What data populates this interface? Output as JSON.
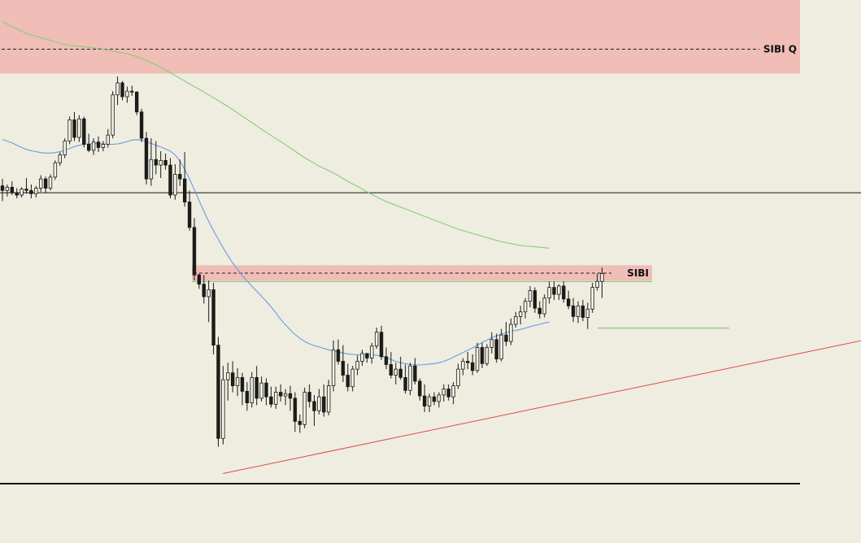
{
  "chart_data": {
    "type": "candlestick",
    "colors": {
      "background": "#eeeddf",
      "bull_fill": "#f2f2e6",
      "bear_fill": "#1c1c1c",
      "candle_outline": "#1a1a1a",
      "zone_fill": "#f0bdb7",
      "ma_fast": "#6a9be6",
      "ma_slow": "#8ec97a",
      "trendline": "#e04a4a",
      "level_line": "#79b86a",
      "horizontal_line": "#111111"
    },
    "zones": [
      {
        "label": "SIBI Q",
        "top": 1.0,
        "bottom": 0.888,
        "mid": 0.941,
        "extends_to": 245
      },
      {
        "label": "SIBI",
        "top": 0.473,
        "bottom": 0.44,
        "mid": 0.456,
        "from": 40,
        "extends_to": 200
      }
    ],
    "horizontal_levels": [
      {
        "name": "upper-level",
        "price": 0.63
      },
      {
        "name": "lower-level",
        "price": 0.0
      }
    ],
    "level_segments": [
      {
        "name": "sibi-base-level",
        "price": 0.438,
        "from": 40,
        "to": 200
      },
      {
        "name": "consolidation-level",
        "price": 0.337,
        "from": 152,
        "to": 183
      }
    ],
    "trendline": {
      "from": {
        "bar": 46,
        "price": 0.022
      },
      "to": {
        "bar": 218,
        "price": 0.394
      }
    },
    "candles": [
      [
        0.645,
        0.66,
        0.612,
        0.635
      ],
      [
        0.635,
        0.648,
        0.622,
        0.642
      ],
      [
        0.642,
        0.655,
        0.625,
        0.63
      ],
      [
        0.63,
        0.64,
        0.618,
        0.625
      ],
      [
        0.625,
        0.642,
        0.62,
        0.638
      ],
      [
        0.638,
        0.662,
        0.628,
        0.635
      ],
      [
        0.635,
        0.648,
        0.618,
        0.628
      ],
      [
        0.628,
        0.645,
        0.62,
        0.64
      ],
      [
        0.64,
        0.668,
        0.632,
        0.66
      ],
      [
        0.66,
        0.665,
        0.63,
        0.64
      ],
      [
        0.64,
        0.67,
        0.635,
        0.664
      ],
      [
        0.664,
        0.7,
        0.658,
        0.695
      ],
      [
        0.695,
        0.718,
        0.688,
        0.712
      ],
      [
        0.712,
        0.748,
        0.705,
        0.742
      ],
      [
        0.742,
        0.795,
        0.735,
        0.788
      ],
      [
        0.788,
        0.805,
        0.742,
        0.75
      ],
      [
        0.75,
        0.798,
        0.74,
        0.79
      ],
      [
        0.79,
        0.795,
        0.728,
        0.735
      ],
      [
        0.735,
        0.758,
        0.718,
        0.722
      ],
      [
        0.722,
        0.748,
        0.712,
        0.74
      ],
      [
        0.74,
        0.752,
        0.718,
        0.728
      ],
      [
        0.728,
        0.742,
        0.72,
        0.735
      ],
      [
        0.735,
        0.768,
        0.728,
        0.755
      ],
      [
        0.755,
        0.85,
        0.748,
        0.842
      ],
      [
        0.842,
        0.882,
        0.82,
        0.868
      ],
      [
        0.868,
        0.872,
        0.83,
        0.838
      ],
      [
        0.838,
        0.86,
        0.825,
        0.85
      ],
      [
        0.85,
        0.862,
        0.84,
        0.848
      ],
      [
        0.848,
        0.85,
        0.798,
        0.805
      ],
      [
        0.805,
        0.812,
        0.74,
        0.748
      ],
      [
        0.748,
        0.762,
        0.648,
        0.66
      ],
      [
        0.66,
        0.748,
        0.645,
        0.702
      ],
      [
        0.702,
        0.742,
        0.67,
        0.69
      ],
      [
        0.69,
        0.72,
        0.662,
        0.7
      ],
      [
        0.7,
        0.715,
        0.68,
        0.69
      ],
      [
        0.69,
        0.705,
        0.618,
        0.625
      ],
      [
        0.625,
        0.692,
        0.615,
        0.67
      ],
      [
        0.67,
        0.702,
        0.645,
        0.66
      ],
      [
        0.66,
        0.718,
        0.6,
        0.61
      ],
      [
        0.61,
        0.635,
        0.548,
        0.555
      ],
      [
        0.555,
        0.575,
        0.44,
        0.452
      ],
      [
        0.452,
        0.455,
        0.422,
        0.432
      ],
      [
        0.432,
        0.452,
        0.39,
        0.405
      ],
      [
        0.405,
        0.44,
        0.35,
        0.42
      ],
      [
        0.42,
        0.435,
        0.28,
        0.3
      ],
      [
        0.3,
        0.318,
        0.08,
        0.098
      ],
      [
        0.098,
        0.255,
        0.085,
        0.225
      ],
      [
        0.225,
        0.262,
        0.18,
        0.24
      ],
      [
        0.24,
        0.265,
        0.198,
        0.212
      ],
      [
        0.212,
        0.25,
        0.19,
        0.23
      ],
      [
        0.23,
        0.24,
        0.17,
        0.2
      ],
      [
        0.2,
        0.22,
        0.158,
        0.175
      ],
      [
        0.175,
        0.242,
        0.165,
        0.23
      ],
      [
        0.23,
        0.255,
        0.17,
        0.185
      ],
      [
        0.185,
        0.232,
        0.178,
        0.218
      ],
      [
        0.218,
        0.228,
        0.17,
        0.188
      ],
      [
        0.188,
        0.21,
        0.165,
        0.172
      ],
      [
        0.172,
        0.21,
        0.162,
        0.198
      ],
      [
        0.198,
        0.215,
        0.178,
        0.19
      ],
      [
        0.19,
        0.205,
        0.17,
        0.195
      ],
      [
        0.195,
        0.212,
        0.158,
        0.185
      ],
      [
        0.185,
        0.198,
        0.112,
        0.135
      ],
      [
        0.135,
        0.15,
        0.11,
        0.128
      ],
      [
        0.128,
        0.208,
        0.12,
        0.198
      ],
      [
        0.198,
        0.215,
        0.165,
        0.178
      ],
      [
        0.178,
        0.192,
        0.125,
        0.158
      ],
      [
        0.158,
        0.205,
        0.15,
        0.188
      ],
      [
        0.188,
        0.215,
        0.145,
        0.155
      ],
      [
        0.155,
        0.225,
        0.148,
        0.212
      ],
      [
        0.212,
        0.31,
        0.2,
        0.29
      ],
      [
        0.29,
        0.312,
        0.258,
        0.265
      ],
      [
        0.265,
        0.3,
        0.22,
        0.235
      ],
      [
        0.235,
        0.26,
        0.2,
        0.21
      ],
      [
        0.21,
        0.255,
        0.2,
        0.248
      ],
      [
        0.248,
        0.278,
        0.235,
        0.265
      ],
      [
        0.265,
        0.29,
        0.255,
        0.282
      ],
      [
        0.282,
        0.282,
        0.262,
        0.272
      ],
      [
        0.272,
        0.305,
        0.26,
        0.298
      ],
      [
        0.298,
        0.338,
        0.292,
        0.328
      ],
      [
        0.328,
        0.342,
        0.268,
        0.275
      ],
      [
        0.275,
        0.295,
        0.248,
        0.258
      ],
      [
        0.258,
        0.285,
        0.228,
        0.235
      ],
      [
        0.235,
        0.262,
        0.215,
        0.248
      ],
      [
        0.248,
        0.275,
        0.225,
        0.23
      ],
      [
        0.23,
        0.258,
        0.195,
        0.202
      ],
      [
        0.202,
        0.262,
        0.192,
        0.255
      ],
      [
        0.255,
        0.272,
        0.215,
        0.222
      ],
      [
        0.222,
        0.228,
        0.18,
        0.19
      ],
      [
        0.19,
        0.215,
        0.155,
        0.168
      ],
      [
        0.168,
        0.195,
        0.155,
        0.188
      ],
      [
        0.188,
        0.198,
        0.17,
        0.178
      ],
      [
        0.178,
        0.198,
        0.165,
        0.192
      ],
      [
        0.192,
        0.215,
        0.178,
        0.205
      ],
      [
        0.205,
        0.215,
        0.18,
        0.188
      ],
      [
        0.188,
        0.22,
        0.172,
        0.212
      ],
      [
        0.212,
        0.26,
        0.205,
        0.248
      ],
      [
        0.248,
        0.272,
        0.235,
        0.265
      ],
      [
        0.265,
        0.285,
        0.248,
        0.262
      ],
      [
        0.262,
        0.28,
        0.235,
        0.245
      ],
      [
        0.245,
        0.305,
        0.24,
        0.295
      ],
      [
        0.295,
        0.305,
        0.25,
        0.26
      ],
      [
        0.26,
        0.302,
        0.255,
        0.295
      ],
      [
        0.295,
        0.328,
        0.282,
        0.312
      ],
      [
        0.312,
        0.325,
        0.262,
        0.27
      ],
      [
        0.27,
        0.335,
        0.265,
        0.322
      ],
      [
        0.322,
        0.35,
        0.298,
        0.308
      ],
      [
        0.308,
        0.358,
        0.3,
        0.345
      ],
      [
        0.345,
        0.372,
        0.338,
        0.362
      ],
      [
        0.362,
        0.385,
        0.345,
        0.372
      ],
      [
        0.372,
        0.402,
        0.358,
        0.395
      ],
      [
        0.395,
        0.428,
        0.382,
        0.418
      ],
      [
        0.418,
        0.425,
        0.37,
        0.38
      ],
      [
        0.38,
        0.395,
        0.358,
        0.368
      ],
      [
        0.368,
        0.41,
        0.36,
        0.402
      ],
      [
        0.402,
        0.438,
        0.39,
        0.425
      ],
      [
        0.425,
        0.438,
        0.398,
        0.41
      ],
      [
        0.41,
        0.432,
        0.398,
        0.428
      ],
      [
        0.428,
        0.438,
        0.392,
        0.4
      ],
      [
        0.4,
        0.418,
        0.378,
        0.385
      ],
      [
        0.385,
        0.402,
        0.35,
        0.362
      ],
      [
        0.362,
        0.395,
        0.348,
        0.385
      ],
      [
        0.385,
        0.398,
        0.352,
        0.36
      ],
      [
        0.36,
        0.392,
        0.335,
        0.378
      ],
      [
        0.378,
        0.435,
        0.37,
        0.425
      ],
      [
        0.425,
        0.455,
        0.418,
        0.438
      ],
      [
        0.438,
        0.468,
        0.402,
        0.455
      ]
    ],
    "ma_fast": [
      0.745,
      0.742,
      0.738,
      0.733,
      0.728,
      0.724,
      0.721,
      0.719,
      0.717,
      0.716,
      0.716,
      0.717,
      0.719,
      0.722,
      0.726,
      0.73,
      0.733,
      0.735,
      0.736,
      0.737,
      0.737,
      0.736,
      0.735,
      0.735,
      0.736,
      0.738,
      0.741,
      0.744,
      0.745,
      0.744,
      0.741,
      0.737,
      0.733,
      0.729,
      0.725,
      0.72,
      0.712,
      0.699,
      0.681,
      0.66,
      0.637,
      0.613,
      0.59,
      0.568,
      0.548,
      0.529,
      0.511,
      0.494,
      0.478,
      0.464,
      0.451,
      0.439,
      0.428,
      0.417,
      0.406,
      0.395,
      0.383,
      0.37,
      0.356,
      0.344,
      0.333,
      0.323,
      0.315,
      0.308,
      0.303,
      0.299,
      0.296,
      0.293,
      0.29,
      0.287,
      0.285,
      0.283,
      0.281,
      0.28,
      0.279,
      0.279,
      0.279,
      0.279,
      0.278,
      0.276,
      0.273,
      0.269,
      0.265,
      0.262,
      0.26,
      0.258,
      0.257,
      0.257,
      0.258,
      0.259,
      0.26,
      0.262,
      0.265,
      0.269,
      0.274,
      0.279,
      0.284,
      0.289,
      0.294,
      0.3,
      0.306,
      0.311,
      0.316,
      0.32,
      0.324,
      0.327,
      0.33,
      0.332,
      0.334,
      0.337,
      0.34,
      0.343,
      0.345,
      0.348,
      0.35
    ],
    "ma_slow": [
      1.0,
      0.995,
      0.99,
      0.985,
      0.98,
      0.975,
      0.972,
      0.969,
      0.966,
      0.963,
      0.96,
      0.957,
      0.954,
      0.951,
      0.949,
      0.948,
      0.947,
      0.946,
      0.945,
      0.944,
      0.943,
      0.941,
      0.939,
      0.937,
      0.935,
      0.933,
      0.931,
      0.928,
      0.925,
      0.921,
      0.917,
      0.912,
      0.907,
      0.902,
      0.896,
      0.89,
      0.884,
      0.878,
      0.872,
      0.866,
      0.86,
      0.854,
      0.848,
      0.842,
      0.836,
      0.83,
      0.823,
      0.817,
      0.81,
      0.803,
      0.796,
      0.789,
      0.782,
      0.775,
      0.768,
      0.761,
      0.754,
      0.747,
      0.741,
      0.734,
      0.727,
      0.72,
      0.713,
      0.706,
      0.7,
      0.694,
      0.688,
      0.683,
      0.678,
      0.673,
      0.667,
      0.661,
      0.655,
      0.649,
      0.644,
      0.638,
      0.632,
      0.626,
      0.621,
      0.616,
      0.611,
      0.607,
      0.603,
      0.599,
      0.595,
      0.591,
      0.587,
      0.583,
      0.579,
      0.575,
      0.571,
      0.567,
      0.563,
      0.559,
      0.555,
      0.551,
      0.548,
      0.545,
      0.542,
      0.539,
      0.536,
      0.533,
      0.53,
      0.527,
      0.524,
      0.522,
      0.52,
      0.518,
      0.516,
      0.515,
      0.514,
      0.513,
      0.512,
      0.511,
      0.51
    ]
  }
}
